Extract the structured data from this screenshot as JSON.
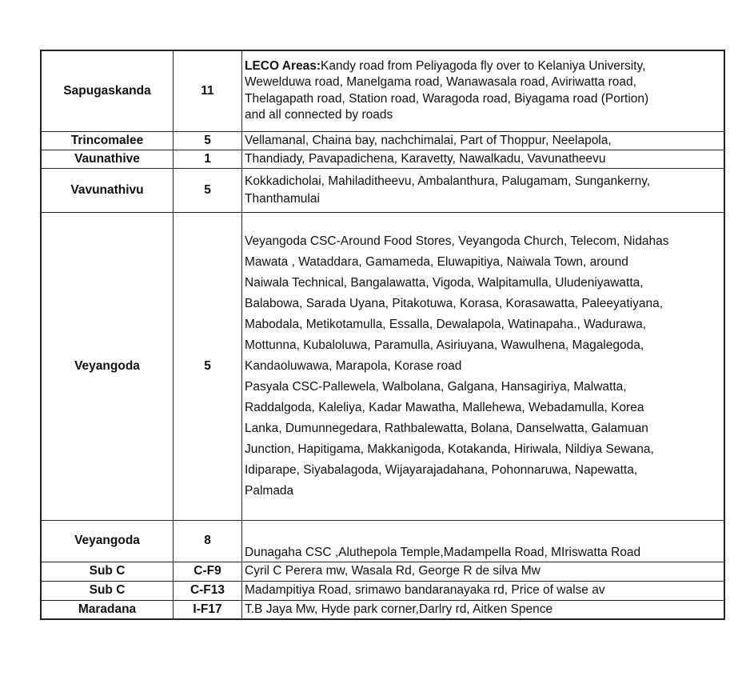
{
  "rows": [
    {
      "area": "Sapugaskanda",
      "code": "11",
      "prefix": "LECO Areas:",
      "lines": [
        "Kandy road from Peliyagoda fly over to Kelaniya University,",
        "Wewelduwa road, Manelgama road, Wanawasala road, Aviriwatta road,",
        "Thelagapath road, Station road, Waragoda road, Biyagama road (Portion)",
        "and all connected by roads"
      ]
    },
    {
      "area": "Trincomalee",
      "code": "5",
      "lines": [
        "Vellamanal, Chaina bay, nachchimalai, Part of Thoppur, Neelapola,"
      ]
    },
    {
      "area": "Vaunathive",
      "code": "1",
      "lines": [
        "Thandiady, Pavapadichena, Karavetty, Nawalkadu, Vavunatheevu"
      ]
    },
    {
      "area": "Vavunathivu",
      "code": "5",
      "lines": [
        "Kokkadicholai, Mahiladitheevu, Ambalanthura, Palugamam, Sungankerny,",
        "Thanthamulai"
      ]
    },
    {
      "area": "Veyangoda",
      "code": "5",
      "lines": [
        "Veyangoda CSC-Around Food Stores, Veyangoda Church, Telecom, Nidahas",
        "Mawata , Wataddara, Gamameda, Eluwapitiya, Naiwala Town, around",
        "Naiwala Technical, Bangalawatta, Vigoda, Walpitamulla, Uludeniyawatta,",
        "Balabowa, Sarada Uyana, Pitakotuwa, Korasa, Korasawatta, Paleeyatiyana,",
        "Mabodala, Metikotamulla, Essalla, Dewalapola, Watinapaha., Wadurawa,",
        "Mottunna, Kubaloluwa, Paramulla, Asiriuyana, Wawulhena, Magalegoda,",
        "Kandaoluwawa, Marapola, Korase road",
        "Pasyala CSC-Pallewela, Walbolana, Galgana, Hansagiriya, Malwatta,",
        "Raddalgoda, Kaleliya, Kadar Mawatha, Mallehewa, Webadamulla, Korea",
        "Lanka, Dumunnegedara, Rathbalewatta, Bolana, Danselwatta, Galamuan",
        "Junction, Hapitigama, Makkanigoda, Kotakanda, Hiriwala, Nildiya Sewana,",
        "Idiparape, Siyabalagoda, Wijayarajadahana, Pohonnaruwa, Napewatta,",
        "Palmada"
      ]
    },
    {
      "area": "Veyangoda",
      "code": "8",
      "lines": [
        "Dunagaha CSC ,Aluthepola Temple,Madampella Road, MIriswatta Road"
      ]
    },
    {
      "area": "Sub C",
      "code": "C-F9",
      "lines": [
        "Cyril C Perera mw,  Wasala Rd, George R de silva Mw"
      ]
    },
    {
      "area": "Sub C",
      "code": "C-F13",
      "lines": [
        "Madampitiya Road, srimawo bandaranayaka rd, Price of walse av"
      ]
    },
    {
      "area": "Maradana",
      "code": "I-F17",
      "lines": [
        "T.B Jaya Mw, Hyde park corner,Darlry rd, Aitken Spence"
      ]
    }
  ]
}
